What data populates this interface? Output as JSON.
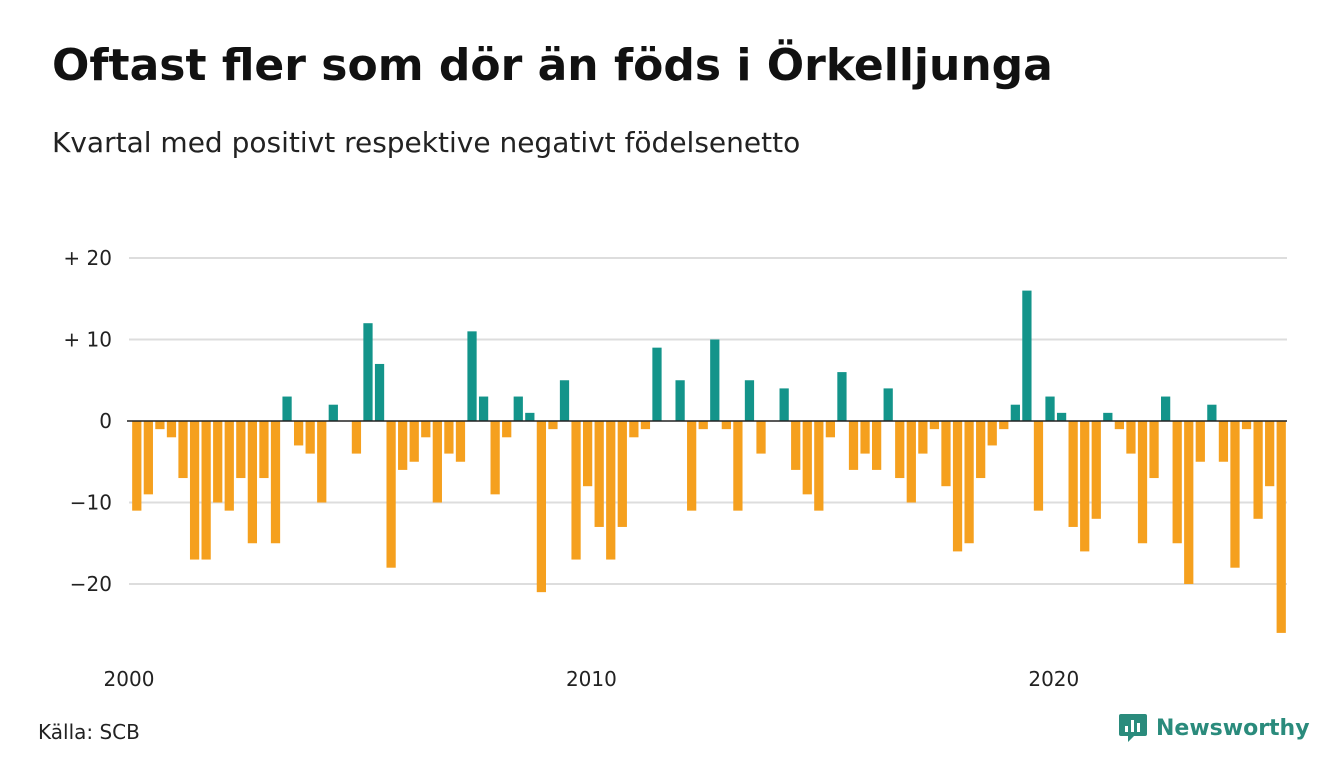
{
  "header": {
    "title": "Oftast fler som dör än föds i Örkelljunga",
    "subtitle": "Kvartal med positivt respektive negativt födelsenetto"
  },
  "footer": {
    "source": "Källa: SCB",
    "brand": "Newsworthy",
    "brand_icon": "newsworthy-logo-icon",
    "brand_color": "#2a8b7c"
  },
  "chart_data": {
    "type": "bar",
    "title": "Oftast fler som dör än föds i Örkelljunga",
    "subtitle": "Kvartal med positivt respektive negativt födelsenetto",
    "xlabel": "",
    "ylabel": "",
    "start_year": 2000,
    "periods_per_year": 4,
    "ylim": [
      -27,
      20
    ],
    "grid": true,
    "legend": "none",
    "colors": {
      "positive": "#13948a",
      "negative": "#f5a01e",
      "grid": "#dddddd",
      "zero_line": "#222222"
    },
    "y_ticks": [
      {
        "value": 20,
        "label": "+ 20"
      },
      {
        "value": 10,
        "label": "+ 10"
      },
      {
        "value": 0,
        "label": "0"
      },
      {
        "value": -10,
        "label": "−10"
      },
      {
        "value": -20,
        "label": "−20"
      }
    ],
    "x_ticks": [
      {
        "year": 2000,
        "label": "2000"
      },
      {
        "year": 2010,
        "label": "2010"
      },
      {
        "year": 2020,
        "label": "2020"
      }
    ],
    "values": [
      -11,
      -9,
      -1,
      -2,
      -7,
      -17,
      -17,
      -10,
      -11,
      -7,
      -15,
      -7,
      -15,
      3,
      -3,
      -4,
      -10,
      2,
      0,
      -4,
      12,
      7,
      -18,
      -6,
      -5,
      -2,
      -10,
      -4,
      -5,
      11,
      3,
      -9,
      -2,
      3,
      1,
      -21,
      -1,
      5,
      -17,
      -8,
      -13,
      -17,
      -13,
      -2,
      -1,
      9,
      0,
      5,
      -11,
      -1,
      10,
      -1,
      -11,
      5,
      -4,
      0,
      4,
      -6,
      -9,
      -11,
      -2,
      6,
      -6,
      -4,
      -6,
      4,
      -7,
      -10,
      -4,
      -1,
      -8,
      -16,
      -15,
      -7,
      -3,
      -1,
      2,
      16,
      -11,
      3,
      1,
      -13,
      -16,
      -12,
      1,
      -1,
      -4,
      -15,
      -7,
      3,
      -15,
      -20,
      -5,
      2,
      -5,
      -18,
      -1,
      -12,
      -8,
      -26
    ]
  }
}
